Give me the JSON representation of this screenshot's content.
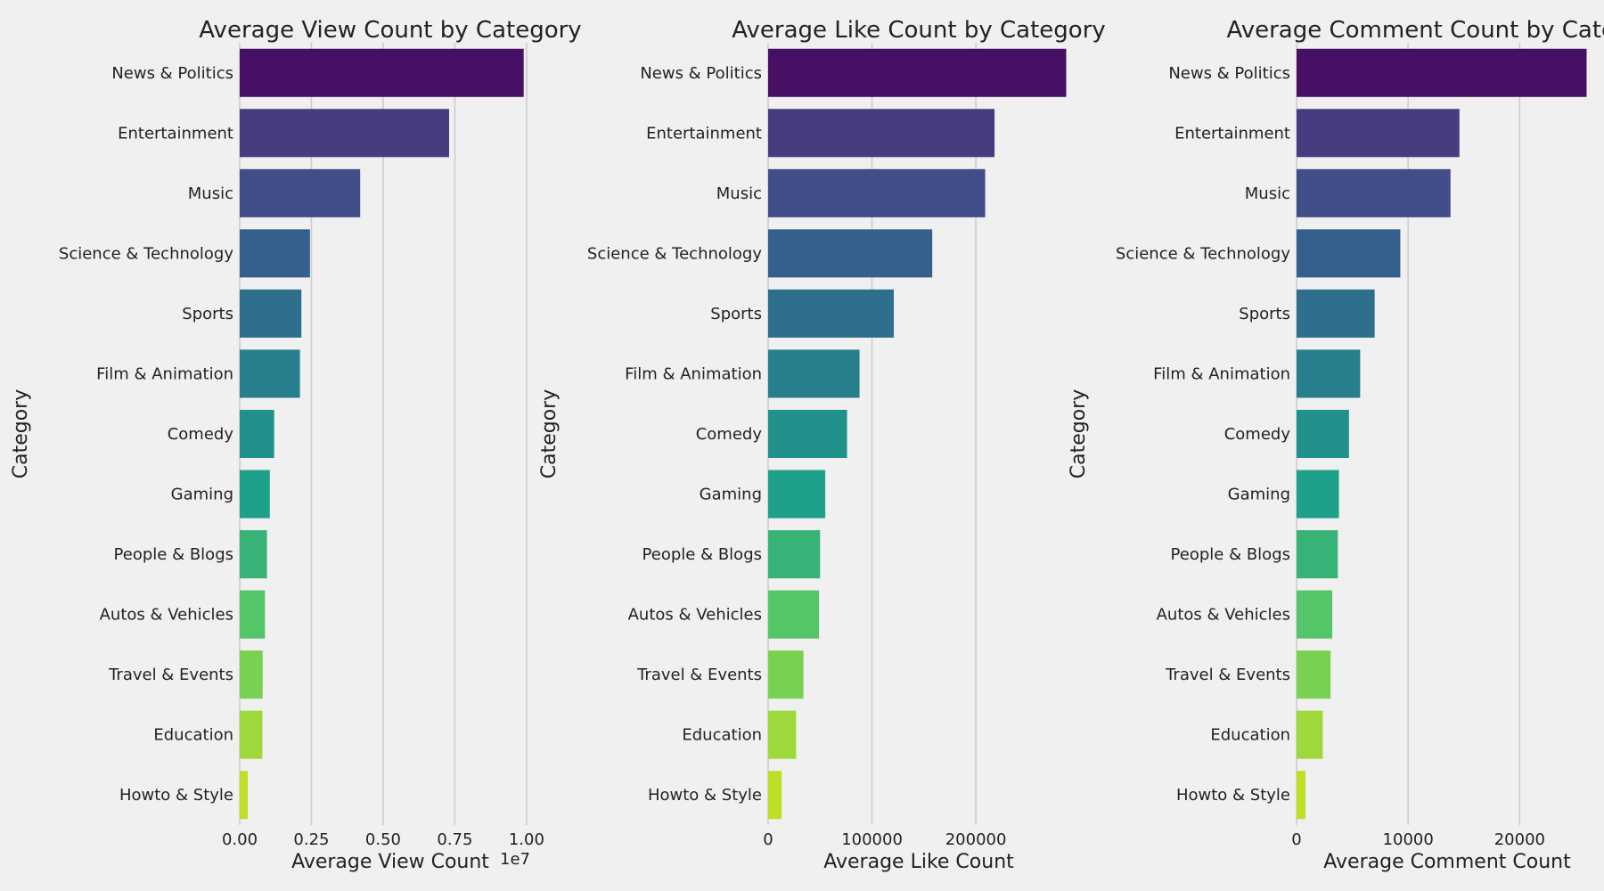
{
  "chart_data": [
    {
      "type": "bar",
      "orientation": "horizontal",
      "title": "Average View Count by Category",
      "xlabel": "Average View Count",
      "ylabel": "Category",
      "x_offset_label": "1e7",
      "xlim": [
        0,
        1.05
      ],
      "xticks": [
        0.0,
        0.25,
        0.5,
        0.75,
        1.0
      ],
      "xtick_labels": [
        "0.00",
        "0.25",
        "0.50",
        "0.75",
        "1.00"
      ],
      "categories": [
        "News & Politics",
        "Entertainment",
        "Music",
        "Science & Technology",
        "Sports",
        "Film & Animation",
        "Comedy",
        "Gaming",
        "People & Blogs",
        "Autos & Vehicles",
        "Travel & Events",
        "Education",
        "Howto & Style"
      ],
      "values": [
        0.99,
        0.73,
        0.42,
        0.245,
        0.215,
        0.21,
        0.12,
        0.105,
        0.095,
        0.088,
        0.08,
        0.079,
        0.028
      ],
      "grid": "vertical"
    },
    {
      "type": "bar",
      "orientation": "horizontal",
      "title": "Average Like Count by Category",
      "xlabel": "Average Like Count",
      "ylabel": "Category",
      "xlim": [
        0,
        290000
      ],
      "xticks": [
        0,
        100000,
        200000
      ],
      "xtick_labels": [
        "0",
        "100000",
        "200000"
      ],
      "categories": [
        "News & Politics",
        "Entertainment",
        "Music",
        "Science & Technology",
        "Sports",
        "Film & Animation",
        "Comedy",
        "Gaming",
        "People & Blogs",
        "Autos & Vehicles",
        "Travel & Events",
        "Education",
        "Howto & Style"
      ],
      "values": [
        287000,
        218000,
        209000,
        158000,
        121000,
        88000,
        76000,
        55000,
        50000,
        49000,
        34000,
        27000,
        13000
      ],
      "grid": "vertical"
    },
    {
      "type": "bar",
      "orientation": "horizontal",
      "title": "Average Comment Count by Category",
      "xlabel": "Average Comment Count",
      "ylabel": "Category",
      "xlim": [
        0,
        27000
      ],
      "xticks": [
        0,
        10000,
        20000
      ],
      "xtick_labels": [
        "0",
        "10000",
        "20000"
      ],
      "categories": [
        "News & Politics",
        "Entertainment",
        "Music",
        "Science & Technology",
        "Sports",
        "Film & Animation",
        "Comedy",
        "Gaming",
        "People & Blogs",
        "Autos & Vehicles",
        "Travel & Events",
        "Education",
        "Howto & Style"
      ],
      "values": [
        26000,
        14600,
        13800,
        9300,
        7000,
        5700,
        4700,
        3800,
        3700,
        3200,
        3050,
        2350,
        800
      ],
      "grid": "vertical"
    }
  ],
  "colors": {
    "background": "#f0f0f0",
    "grid": "#cbcbcb",
    "bars": [
      "#471064",
      "#473c80",
      "#424e89",
      "#355f8d",
      "#2e6f8e",
      "#277f8e",
      "#21918c",
      "#1fa088",
      "#37b378",
      "#54c568",
      "#79d151",
      "#9dd93b",
      "#bddf26"
    ]
  }
}
